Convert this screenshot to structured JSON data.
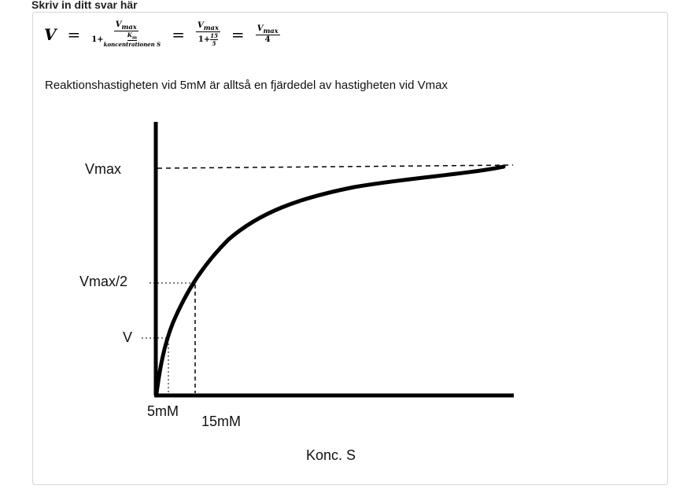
{
  "header": "Skriv in ditt svar här",
  "formula": {
    "lhs": "V",
    "vmax": "V",
    "vmax_sub": "max",
    "one_plus": "1+",
    "km": "K",
    "km_sub": "m",
    "conc": "koncentrationen S",
    "n15": "15",
    "n5": "5",
    "four": "4",
    "equals": "="
  },
  "sentence": "Reaktionshastigheten vid 5mM är alltså en fjärdedel av hastigheten vid Vmax",
  "graph": {
    "vmax": "Vmax",
    "vmax_half": "Vmax/2",
    "v": "V",
    "x5": "5mM",
    "x15": "15mM",
    "xlabel": "Konc. S"
  }
}
